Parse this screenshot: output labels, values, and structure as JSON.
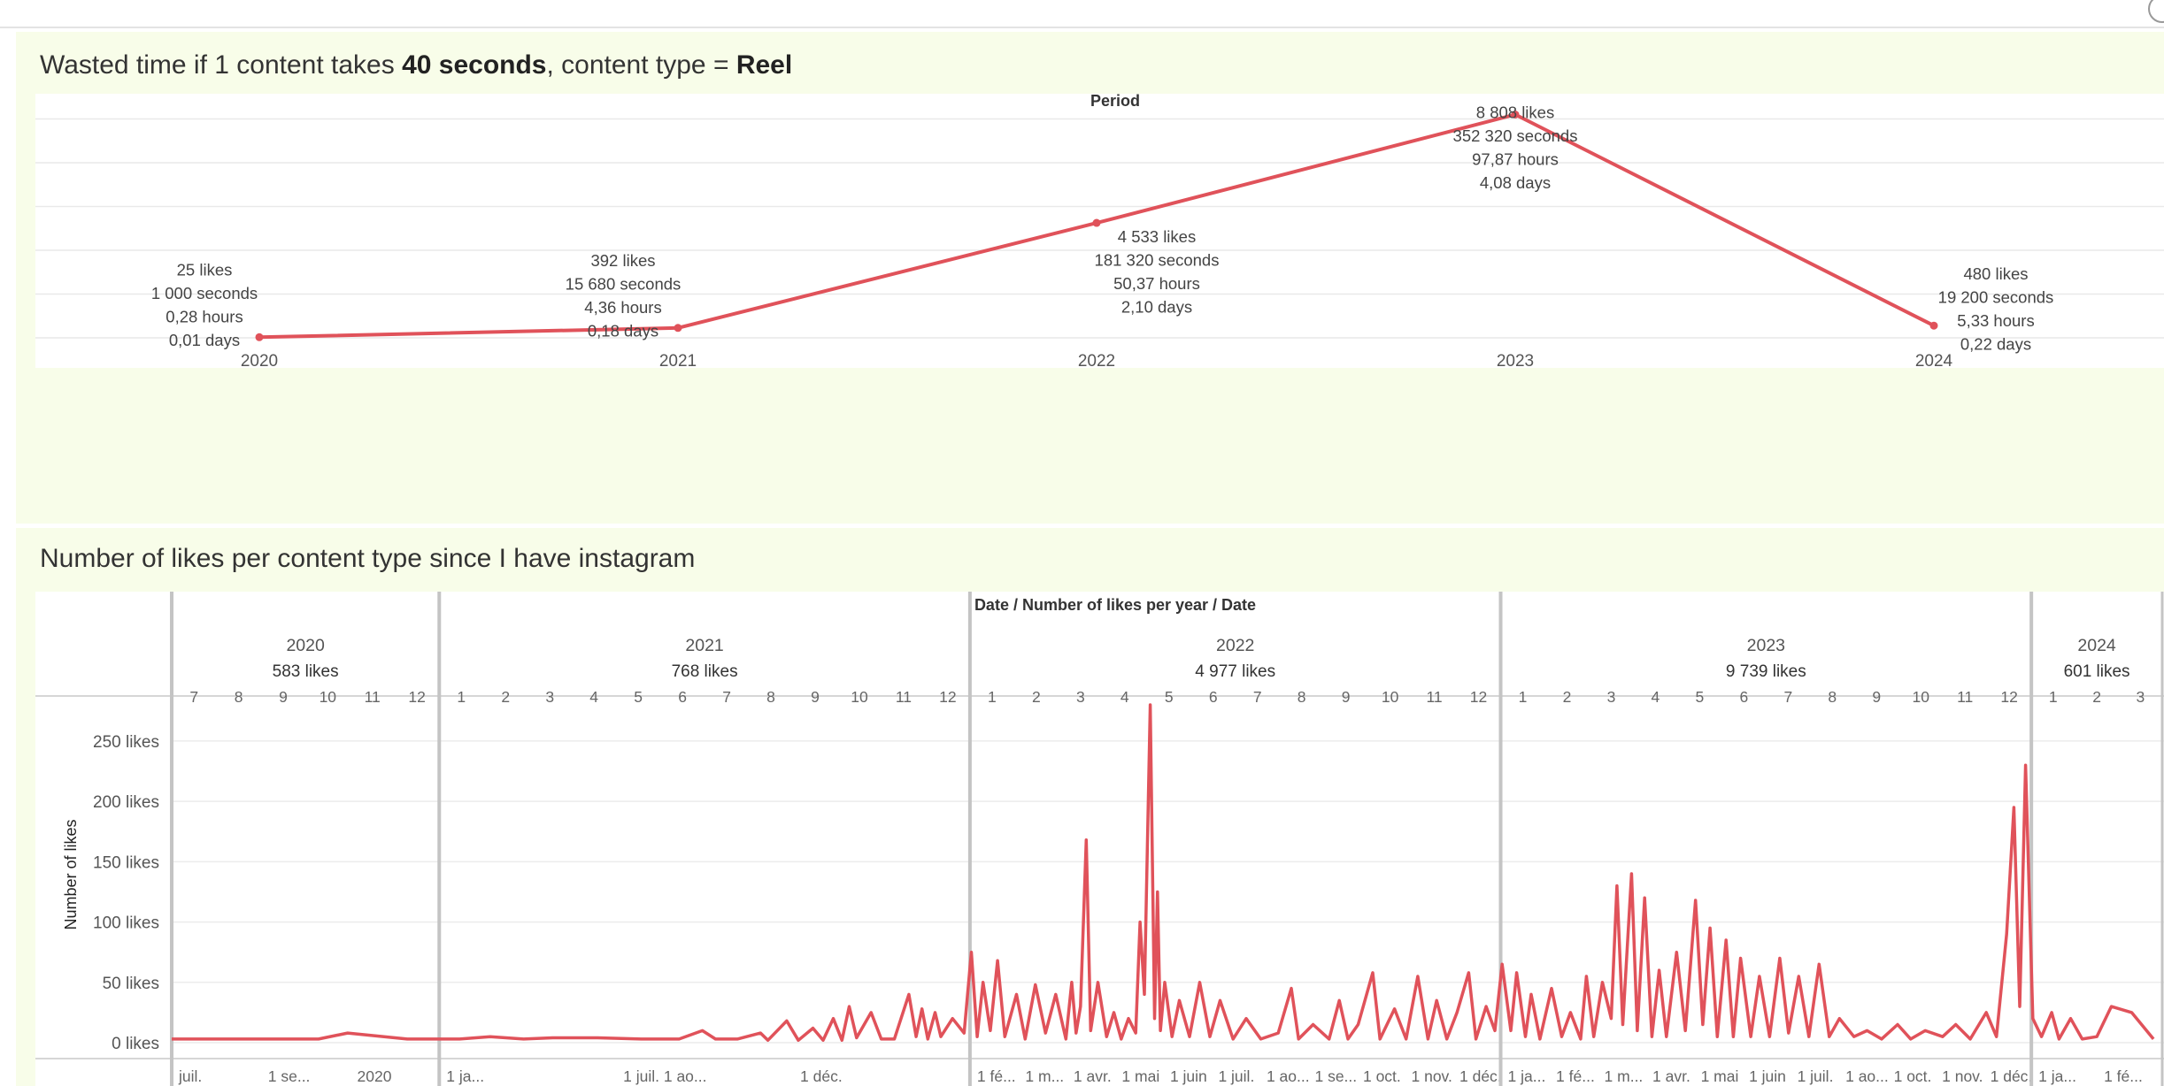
{
  "title_line1": {
    "prefix": "Wasted time if 1 content takes ",
    "seconds_bold": "40 seconds",
    "middle": ", content type = ",
    "type_bold": "Reel"
  },
  "title_line2": "Number of likes per content type since I have instagram",
  "colors": {
    "line": "#e0525a",
    "panel_bg": "#f8fde9",
    "plot_bg": "#ffffff",
    "divider": "#c4c4c4"
  },
  "chart_data": [
    {
      "type": "line",
      "header": "Period",
      "categories": [
        "2020",
        "2021",
        "2022",
        "2023",
        "2024"
      ],
      "series": [
        {
          "values": [
            25,
            392,
            4533,
            8808,
            480
          ],
          "labels": [
            [
              "25 likes",
              "1 000 seconds",
              "0,28 hours",
              "0,01 days"
            ],
            [
              "392 likes",
              "15 680 seconds",
              "4,36 hours",
              "0,18 days"
            ],
            [
              "4 533 likes",
              "181 320 seconds",
              "50,37 hours",
              "2,10 days"
            ],
            [
              "8 808 likes",
              "352 320 seconds",
              "97,87 hours",
              "4,08 days"
            ],
            [
              "480 likes",
              "19 200 seconds",
              "5,33 hours",
              "0,22 days"
            ]
          ]
        }
      ],
      "ylim": [
        0,
        9000
      ],
      "grid": true
    },
    {
      "type": "line",
      "header": "Date / Number of likes per year / Date",
      "ylabel": "Number of likes",
      "ylim": [
        0,
        280
      ],
      "yticks": [
        0,
        50,
        100,
        150,
        200,
        250
      ],
      "ytick_labels": [
        "0 likes",
        "50 likes",
        "100 likes",
        "150 likes",
        "200 likes",
        "250 likes"
      ],
      "years": [
        {
          "year": "2020",
          "total": "583 likes",
          "months": [
            "7",
            "8",
            "9",
            "10",
            "11",
            "12"
          ]
        },
        {
          "year": "2021",
          "total": "768 likes",
          "months": [
            "1",
            "2",
            "3",
            "4",
            "5",
            "6",
            "7",
            "8",
            "9",
            "10",
            "11",
            "12"
          ]
        },
        {
          "year": "2022",
          "total": "4 977 likes",
          "months": [
            "1",
            "2",
            "3",
            "4",
            "5",
            "6",
            "7",
            "8",
            "9",
            "10",
            "11",
            "12"
          ]
        },
        {
          "year": "2023",
          "total": "9 739 likes",
          "months": [
            "1",
            "2",
            "3",
            "4",
            "5",
            "6",
            "7",
            "8",
            "9",
            "10",
            "11",
            "12"
          ]
        },
        {
          "year": "2024",
          "total": "601 likes",
          "months": [
            "1",
            "2",
            "3"
          ]
        }
      ],
      "bottom_axis_labels": [
        {
          "year": "2020",
          "labels": [
            "juil.",
            "1 se...",
            "2020"
          ]
        },
        {
          "year": "2021",
          "labels": [
            "1 ja...",
            "1 juil. 1 ao...",
            "1 déc."
          ]
        },
        {
          "year": "2022",
          "labels": [
            "1 fé...",
            "1 m...",
            "1 avr.",
            "1 mai",
            "1 juin",
            "1 juil.",
            "1 ao...",
            "1 se...",
            "1 oct.",
            "1 nov.",
            "1 déc."
          ]
        },
        {
          "year": "2023",
          "labels": [
            "1 ja...",
            "1 fé...",
            "1 m...",
            "1 avr.",
            "1 mai",
            "1 juin",
            "1 juil.",
            "1 ao...",
            "1 oct.",
            "1 nov.",
            "1 déc."
          ]
        },
        {
          "year": "2024",
          "labels": [
            "1 ja...",
            "1 fé..."
          ]
        }
      ],
      "x_start": "2020-07-01",
      "x_end": "2024-03-31",
      "daily_points": [
        [
          "2020-07-01",
          3
        ],
        [
          "2020-07-15",
          3
        ],
        [
          "2020-08-01",
          3
        ],
        [
          "2020-08-20",
          3
        ],
        [
          "2020-09-05",
          3
        ],
        [
          "2020-09-25",
          3
        ],
        [
          "2020-10-10",
          3
        ],
        [
          "2020-10-30",
          8
        ],
        [
          "2020-12-10",
          3
        ],
        [
          "2021-01-15",
          3
        ],
        [
          "2021-02-05",
          5
        ],
        [
          "2021-02-28",
          3
        ],
        [
          "2021-03-20",
          4
        ],
        [
          "2021-04-20",
          4
        ],
        [
          "2021-05-20",
          3
        ],
        [
          "2021-06-15",
          3
        ],
        [
          "2021-07-01",
          10
        ],
        [
          "2021-07-10",
          3
        ],
        [
          "2021-07-25",
          3
        ],
        [
          "2021-08-10",
          8
        ],
        [
          "2021-08-15",
          2
        ],
        [
          "2021-08-28",
          18
        ],
        [
          "2021-09-05",
          2
        ],
        [
          "2021-09-15",
          12
        ],
        [
          "2021-09-22",
          2
        ],
        [
          "2021-09-29",
          20
        ],
        [
          "2021-10-05",
          2
        ],
        [
          "2021-10-10",
          30
        ],
        [
          "2021-10-15",
          4
        ],
        [
          "2021-10-25",
          25
        ],
        [
          "2021-11-01",
          3
        ],
        [
          "2021-11-10",
          3
        ],
        [
          "2021-11-20",
          40
        ],
        [
          "2021-11-25",
          5
        ],
        [
          "2021-11-29",
          28
        ],
        [
          "2021-12-03",
          3
        ],
        [
          "2021-12-08",
          25
        ],
        [
          "2021-12-12",
          5
        ],
        [
          "2021-12-20",
          20
        ],
        [
          "2021-12-28",
          8
        ],
        [
          "2022-01-02",
          75
        ],
        [
          "2022-01-06",
          5
        ],
        [
          "2022-01-10",
          50
        ],
        [
          "2022-01-15",
          10
        ],
        [
          "2022-01-20",
          68
        ],
        [
          "2022-01-25",
          5
        ],
        [
          "2022-02-02",
          40
        ],
        [
          "2022-02-08",
          3
        ],
        [
          "2022-02-15",
          48
        ],
        [
          "2022-02-22",
          8
        ],
        [
          "2022-03-01",
          40
        ],
        [
          "2022-03-08",
          3
        ],
        [
          "2022-03-12",
          50
        ],
        [
          "2022-03-15",
          8
        ],
        [
          "2022-03-18",
          30
        ],
        [
          "2022-03-22",
          168
        ],
        [
          "2022-03-25",
          10
        ],
        [
          "2022-03-30",
          50
        ],
        [
          "2022-04-05",
          5
        ],
        [
          "2022-04-10",
          25
        ],
        [
          "2022-04-15",
          3
        ],
        [
          "2022-04-20",
          20
        ],
        [
          "2022-04-25",
          8
        ],
        [
          "2022-04-28",
          100
        ],
        [
          "2022-05-01",
          40
        ],
        [
          "2022-05-05",
          280
        ],
        [
          "2022-05-08",
          20
        ],
        [
          "2022-05-10",
          125
        ],
        [
          "2022-05-12",
          10
        ],
        [
          "2022-05-15",
          50
        ],
        [
          "2022-05-20",
          5
        ],
        [
          "2022-05-25",
          35
        ],
        [
          "2022-06-01",
          5
        ],
        [
          "2022-06-08",
          50
        ],
        [
          "2022-06-15",
          5
        ],
        [
          "2022-06-22",
          35
        ],
        [
          "2022-07-01",
          3
        ],
        [
          "2022-07-10",
          20
        ],
        [
          "2022-07-20",
          3
        ],
        [
          "2022-08-01",
          8
        ],
        [
          "2022-08-10",
          45
        ],
        [
          "2022-08-15",
          3
        ],
        [
          "2022-08-25",
          15
        ],
        [
          "2022-09-05",
          3
        ],
        [
          "2022-09-12",
          35
        ],
        [
          "2022-09-18",
          3
        ],
        [
          "2022-09-25",
          15
        ],
        [
          "2022-10-05",
          58
        ],
        [
          "2022-10-10",
          3
        ],
        [
          "2022-10-20",
          28
        ],
        [
          "2022-10-28",
          3
        ],
        [
          "2022-11-05",
          55
        ],
        [
          "2022-11-12",
          3
        ],
        [
          "2022-11-18",
          35
        ],
        [
          "2022-11-25",
          3
        ],
        [
          "2022-12-02",
          25
        ],
        [
          "2022-12-10",
          58
        ],
        [
          "2022-12-15",
          3
        ],
        [
          "2022-12-22",
          30
        ],
        [
          "2022-12-28",
          10
        ],
        [
          "2023-01-02",
          65
        ],
        [
          "2023-01-08",
          10
        ],
        [
          "2023-01-12",
          58
        ],
        [
          "2023-01-18",
          5
        ],
        [
          "2023-01-22",
          40
        ],
        [
          "2023-01-28",
          3
        ],
        [
          "2023-02-05",
          45
        ],
        [
          "2023-02-12",
          5
        ],
        [
          "2023-02-18",
          25
        ],
        [
          "2023-02-25",
          3
        ],
        [
          "2023-03-01",
          55
        ],
        [
          "2023-03-06",
          5
        ],
        [
          "2023-03-12",
          50
        ],
        [
          "2023-03-18",
          20
        ],
        [
          "2023-03-22",
          130
        ],
        [
          "2023-03-26",
          15
        ],
        [
          "2023-04-01",
          140
        ],
        [
          "2023-04-05",
          10
        ],
        [
          "2023-04-10",
          120
        ],
        [
          "2023-04-15",
          5
        ],
        [
          "2023-04-20",
          60
        ],
        [
          "2023-04-25",
          5
        ],
        [
          "2023-05-02",
          75
        ],
        [
          "2023-05-08",
          10
        ],
        [
          "2023-05-15",
          118
        ],
        [
          "2023-05-20",
          15
        ],
        [
          "2023-05-25",
          95
        ],
        [
          "2023-05-30",
          5
        ],
        [
          "2023-06-05",
          85
        ],
        [
          "2023-06-10",
          5
        ],
        [
          "2023-06-15",
          70
        ],
        [
          "2023-06-22",
          5
        ],
        [
          "2023-06-28",
          55
        ],
        [
          "2023-07-05",
          5
        ],
        [
          "2023-07-12",
          70
        ],
        [
          "2023-07-18",
          8
        ],
        [
          "2023-07-25",
          55
        ],
        [
          "2023-08-01",
          5
        ],
        [
          "2023-08-08",
          65
        ],
        [
          "2023-08-15",
          5
        ],
        [
          "2023-08-22",
          20
        ],
        [
          "2023-09-01",
          5
        ],
        [
          "2023-09-10",
          10
        ],
        [
          "2023-09-20",
          3
        ],
        [
          "2023-10-01",
          15
        ],
        [
          "2023-10-10",
          3
        ],
        [
          "2023-10-20",
          10
        ],
        [
          "2023-11-01",
          5
        ],
        [
          "2023-11-10",
          15
        ],
        [
          "2023-11-20",
          3
        ],
        [
          "2023-12-01",
          25
        ],
        [
          "2023-12-08",
          5
        ],
        [
          "2023-12-15",
          90
        ],
        [
          "2023-12-20",
          195
        ],
        [
          "2023-12-24",
          30
        ],
        [
          "2023-12-28",
          230
        ],
        [
          "2024-01-02",
          20
        ],
        [
          "2024-01-08",
          5
        ],
        [
          "2024-01-15",
          25
        ],
        [
          "2024-01-20",
          3
        ],
        [
          "2024-01-28",
          20
        ],
        [
          "2024-02-05",
          3
        ],
        [
          "2024-02-15",
          5
        ],
        [
          "2024-02-25",
          30
        ],
        [
          "2024-03-10",
          25
        ],
        [
          "2024-03-25",
          3
        ]
      ]
    }
  ]
}
